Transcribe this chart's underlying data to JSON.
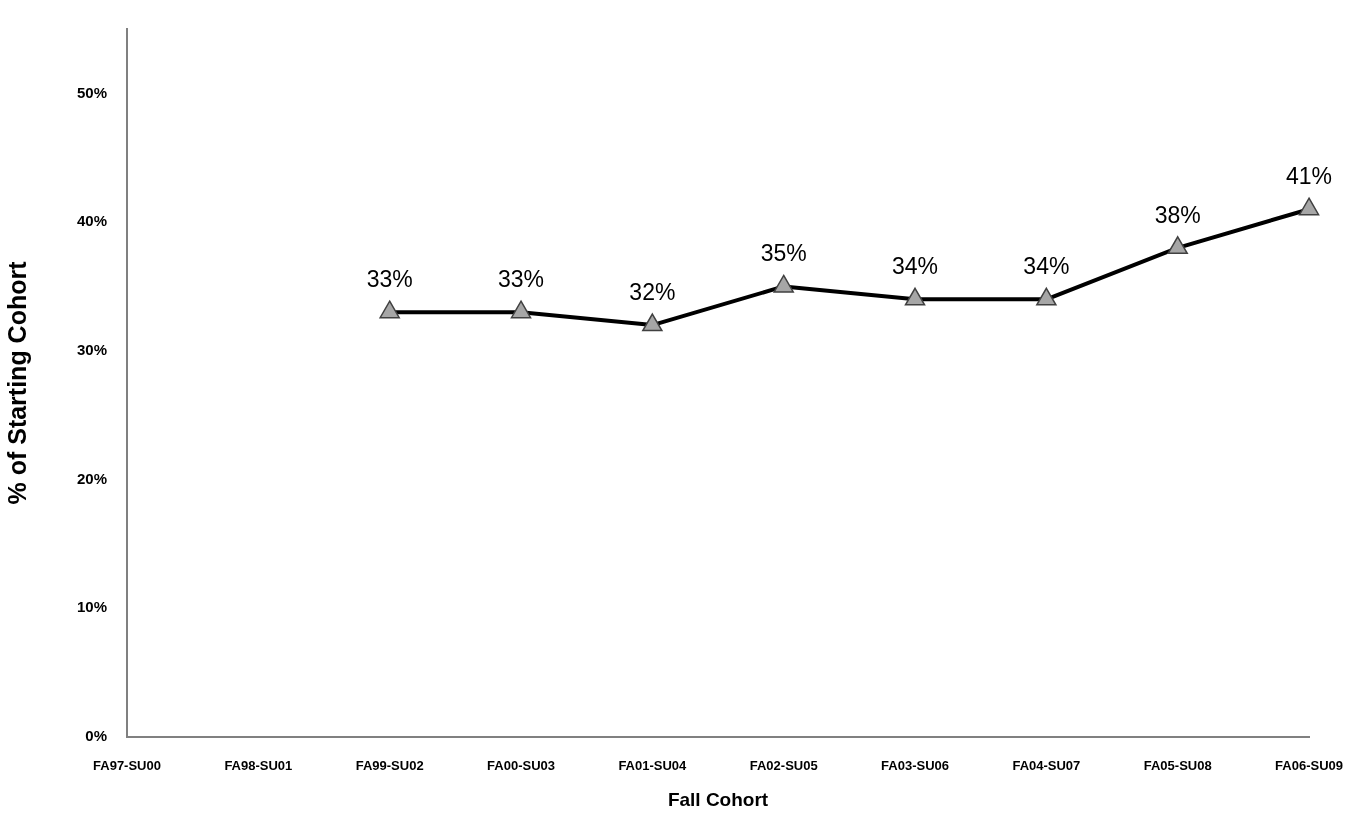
{
  "chart_data": {
    "type": "line",
    "xlabel": "Fall Cohort",
    "ylabel": "% of Starting Cohort",
    "categories": [
      "FA97-SU00",
      "FA98-SU01",
      "FA99-SU02",
      "FA00-SU03",
      "FA01-SU04",
      "FA02-SU05",
      "FA03-SU06",
      "FA04-SU07",
      "FA05-SU08",
      "FA06-SU09"
    ],
    "values": [
      null,
      null,
      33,
      33,
      32,
      35,
      34,
      34,
      38,
      41
    ],
    "value_labels": [
      null,
      null,
      "33%",
      "33%",
      "32%",
      "35%",
      "34%",
      "34%",
      "38%",
      "41%"
    ],
    "color": "#000000",
    "marker": "triangle",
    "line_style": "solid",
    "ylim": [
      0,
      55
    ],
    "yticks": [
      {
        "value": 0,
        "label": "0%"
      },
      {
        "value": 10,
        "label": "10%"
      },
      {
        "value": 20,
        "label": "20%"
      },
      {
        "value": 30,
        "label": "30%"
      },
      {
        "value": 40,
        "label": "40%"
      },
      {
        "value": 50,
        "label": "50%"
      }
    ]
  }
}
